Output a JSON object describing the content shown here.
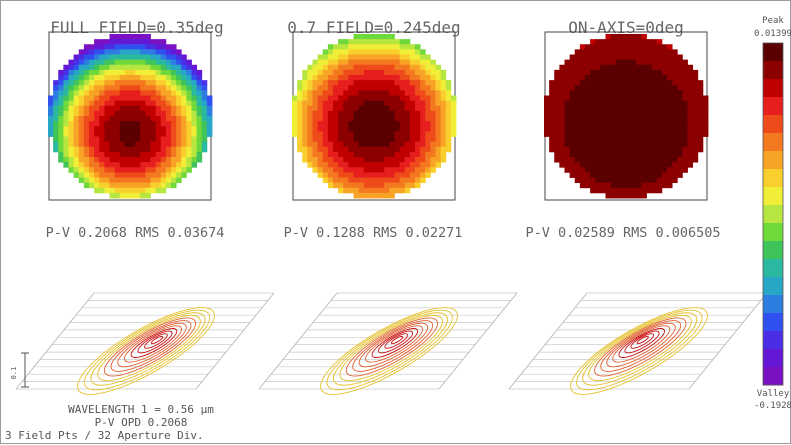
{
  "chart_data": {
    "type": "heatmap",
    "panels": [
      {
        "title": "FULL FIELD=0.35deg",
        "stats": "P-V 0.2068 RMS 0.03674",
        "center": [
          0.0,
          0.3
        ],
        "core": 0.0139,
        "edge": -0.1928,
        "tilt": -0.03
      },
      {
        "title": "0.7 FIELD=0.245deg",
        "stats": "P-V 0.1288 RMS 0.02271",
        "center": [
          0.0,
          0.22
        ],
        "core": 0.0139,
        "edge": -0.115,
        "tilt": -0.02
      },
      {
        "title": "ON-AXIS=0deg",
        "stats": "P-V 0.02589 RMS 0.006505",
        "center": [
          0.0,
          0.1
        ],
        "core": 0.0139,
        "edge": -0.012,
        "tilt": 0.0
      }
    ],
    "colorbar": {
      "peak_label": "Peak",
      "peak_value": "0.01399",
      "valley_label": "Valley",
      "valley_value": "-0.1928",
      "vmin": -0.1928,
      "vmax": 0.01399
    },
    "footer": {
      "wavelength": "WAVELENGTH 1 = 0.56 µm",
      "pv_opd": "P-V OPD 0.2068",
      "sampling": "3 Field Pts / 32 Aperture Div."
    },
    "scale_label": "0.1"
  }
}
